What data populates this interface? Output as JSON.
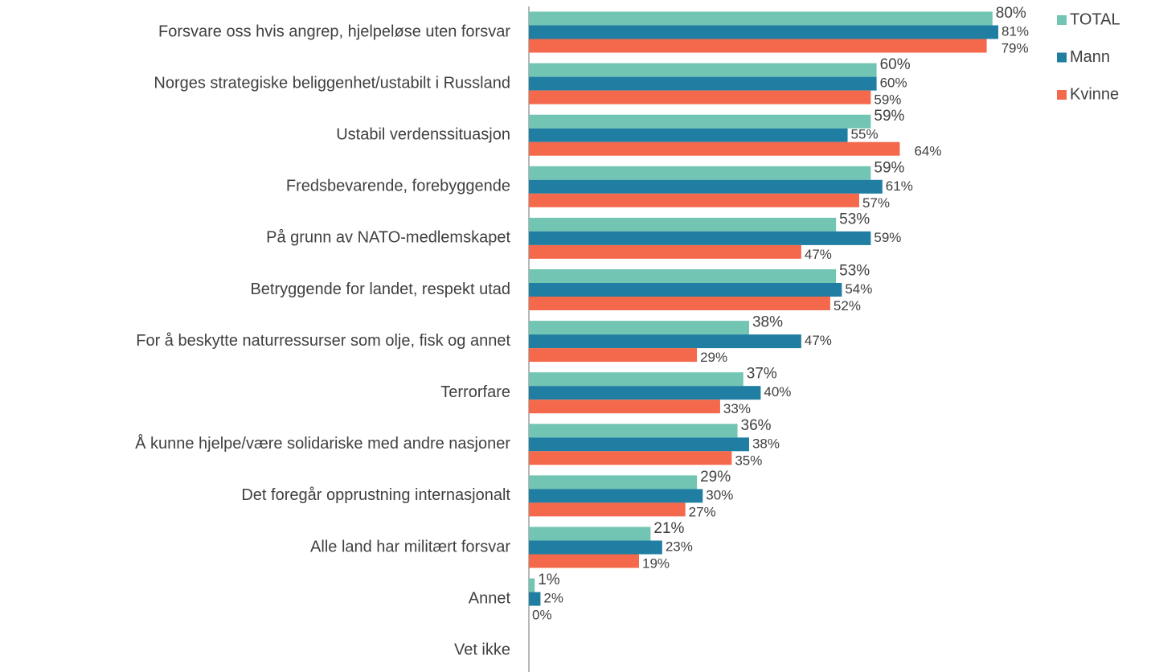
{
  "chart_data": {
    "type": "bar",
    "orientation": "horizontal",
    "categories": [
      "Forsvare oss hvis angrep, hjelpeløse uten forsvar",
      "Norges strategiske beliggenhet/ustabilt i Russland",
      "Ustabil verdenssituasjon",
      "Fredsbevarende, forebyggende",
      "På grunn av NATO-medlemskapet",
      "Betryggende for landet, respekt utad",
      "For å beskytte naturressurser som olje, fisk og annet",
      "Terrorfare",
      "Å kunne hjelpe/være solidariske med andre nasjoner",
      "Det foregår opprustning internasjonalt",
      "Alle land har militært forsvar",
      "Annet",
      "Vet ikke"
    ],
    "series": [
      {
        "name": "TOTAL",
        "color": "#72c4b3",
        "values": [
          80,
          60,
          59,
          59,
          53,
          53,
          38,
          37,
          36,
          29,
          21,
          1,
          null
        ],
        "value_labels": [
          "80%",
          "60%",
          "59%",
          "59%",
          "53%",
          "53%",
          "38%",
          "37%",
          "36%",
          "29%",
          "21%",
          "1%",
          null
        ]
      },
      {
        "name": "Mann",
        "color": "#1f7ea1",
        "values": [
          81,
          60,
          55,
          61,
          59,
          54,
          47,
          40,
          38,
          30,
          23,
          2,
          null
        ],
        "value_labels": [
          "81%",
          "60%",
          "55%",
          "61%",
          "59%",
          "54%",
          "47%",
          "40%",
          "38%",
          "30%",
          "23%",
          "2%",
          null
        ]
      },
      {
        "name": "Kvinne",
        "color": "#f4694b",
        "values": [
          79,
          59,
          64,
          57,
          47,
          52,
          29,
          33,
          35,
          27,
          19,
          0,
          null
        ],
        "value_labels": [
          "79%",
          "59%",
          "64%",
          "57%",
          "47%",
          "52%",
          "29%",
          "33%",
          "35%",
          "27%",
          "19%",
          "0%",
          null
        ]
      }
    ],
    "xlim": [
      0,
      100
    ],
    "legend": "top-right"
  }
}
